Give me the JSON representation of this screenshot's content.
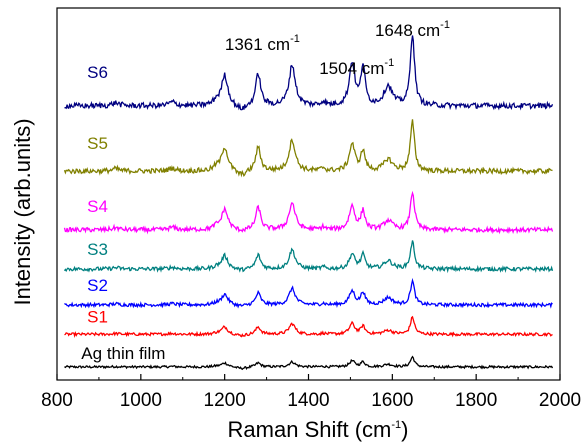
{
  "chart_data": {
    "type": "line",
    "xlabel": "Raman Shift (cm",
    "xlabel_sup": "-1",
    "xlabel_suffix": ")",
    "ylabel": "Intensity (arb.units)",
    "xlim": [
      800,
      2000
    ],
    "xticks": [
      "800",
      "1000",
      "1200",
      "1400",
      "1600",
      "1800",
      "2000"
    ],
    "grid": false,
    "legend": "labels placed next to each trace",
    "peak_centers": [
      1200,
      1280,
      1361,
      1504,
      1530,
      1590,
      1648
    ],
    "peak_widths": [
      9,
      7,
      9,
      8,
      6,
      12,
      6
    ],
    "series": [
      {
        "name": "Ag thin film",
        "color": "#000000",
        "baseline": 0.0,
        "peaks": [
          0.12,
          0.12,
          0.15,
          0.18,
          0.15,
          0.08,
          0.3
        ]
      },
      {
        "name": "S1",
        "color": "#ff0000",
        "baseline": 1.0,
        "peaks": [
          0.22,
          0.22,
          0.32,
          0.32,
          0.24,
          0.12,
          0.52
        ]
      },
      {
        "name": "S2",
        "color": "#0000ff",
        "baseline": 1.9,
        "peaks": [
          0.32,
          0.36,
          0.5,
          0.42,
          0.38,
          0.22,
          0.72
        ]
      },
      {
        "name": "S3",
        "color": "#008080",
        "baseline": 3.0,
        "peaks": [
          0.4,
          0.42,
          0.58,
          0.45,
          0.42,
          0.25,
          0.82
        ]
      },
      {
        "name": "S4",
        "color": "#ff00ff",
        "baseline": 4.2,
        "peaks": [
          0.62,
          0.68,
          0.82,
          0.72,
          0.56,
          0.28,
          1.15
        ]
      },
      {
        "name": "S5",
        "color": "#808000",
        "baseline": 6.0,
        "peaks": [
          0.72,
          0.72,
          0.95,
          0.82,
          0.6,
          0.36,
          1.5
        ]
      },
      {
        "name": "S6",
        "color": "#000080",
        "baseline": 8.0,
        "peaks": [
          0.92,
          0.98,
          1.25,
          1.3,
          1.2,
          0.6,
          2.2
        ]
      }
    ],
    "annotations": [
      {
        "text": "1361 cm",
        "sup": "-1",
        "x": 1361
      },
      {
        "text": "1504 cm",
        "sup": "-1",
        "x": 1504
      },
      {
        "text": "1648 cm",
        "sup": "-1",
        "x": 1648
      }
    ]
  }
}
